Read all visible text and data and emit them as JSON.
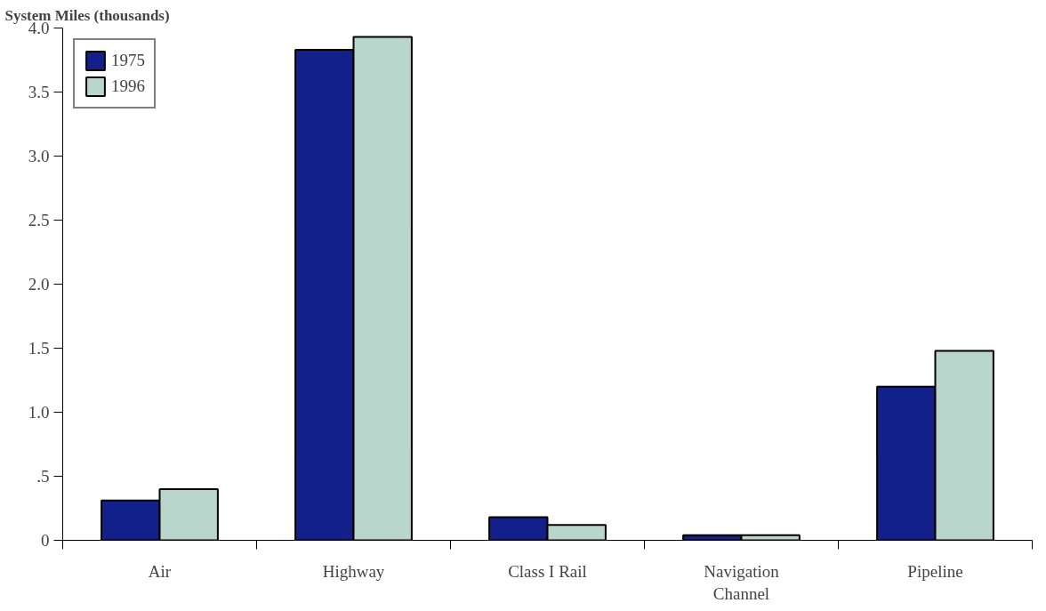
{
  "chart_data": {
    "type": "bar",
    "title": "System Miles (thousands)",
    "categories": [
      "Air",
      "Highway",
      "Class I Rail",
      "Navigation\nChannel",
      "Pipeline"
    ],
    "series": [
      {
        "name": "1975",
        "color": "#13208b",
        "values": [
          0.31,
          3.83,
          0.18,
          0.04,
          1.2
        ]
      },
      {
        "name": "1996",
        "color": "#b8d6cb",
        "values": [
          0.4,
          3.93,
          0.12,
          0.04,
          1.48
        ]
      }
    ],
    "ylim": [
      0,
      4.0
    ],
    "yticks": [
      0,
      {
        "value": 0.5,
        "label": ".5"
      },
      {
        "value": 1,
        "label": "1.0"
      },
      1.5,
      {
        "value": 2,
        "label": "2.0"
      },
      2.5,
      {
        "value": 3,
        "label": "3.0"
      },
      3.5,
      {
        "value": 4,
        "label": "4.0"
      }
    ],
    "grid": false,
    "legend": "top left"
  }
}
